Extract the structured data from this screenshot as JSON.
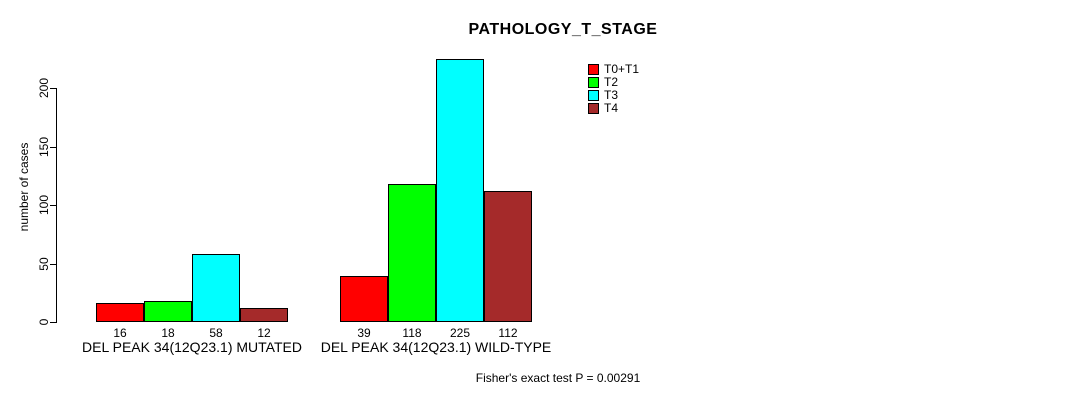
{
  "chart_data": {
    "type": "bar",
    "title": "PATHOLOGY_T_STAGE",
    "ylabel": "number of cases",
    "xlabel": "",
    "yticks": [
      0,
      50,
      100,
      150,
      200
    ],
    "ylim": [
      0,
      230
    ],
    "grid": false,
    "legend_position": "top-right",
    "categories": [
      "DEL PEAK 34(12Q23.1) MUTATED",
      "DEL PEAK 34(12Q23.1) WILD-TYPE"
    ],
    "series": [
      {
        "name": "T0+T1",
        "color": "#FF0000",
        "values": [
          16,
          39
        ]
      },
      {
        "name": "T2",
        "color": "#00FF00",
        "values": [
          18,
          118
        ]
      },
      {
        "name": "T3",
        "color": "#00FFFF",
        "values": [
          58,
          225
        ]
      },
      {
        "name": "T4",
        "color": "#A52A2A",
        "values": [
          12,
          112
        ]
      }
    ],
    "bar_value_labels": [
      [
        16,
        18,
        58,
        12
      ],
      [
        39,
        118,
        225,
        112
      ]
    ],
    "annotation": "Fisher's exact test P = 0.00291"
  },
  "colors": {
    "background": "#FFFFFF",
    "axis": "#000000",
    "text": "#000000"
  }
}
